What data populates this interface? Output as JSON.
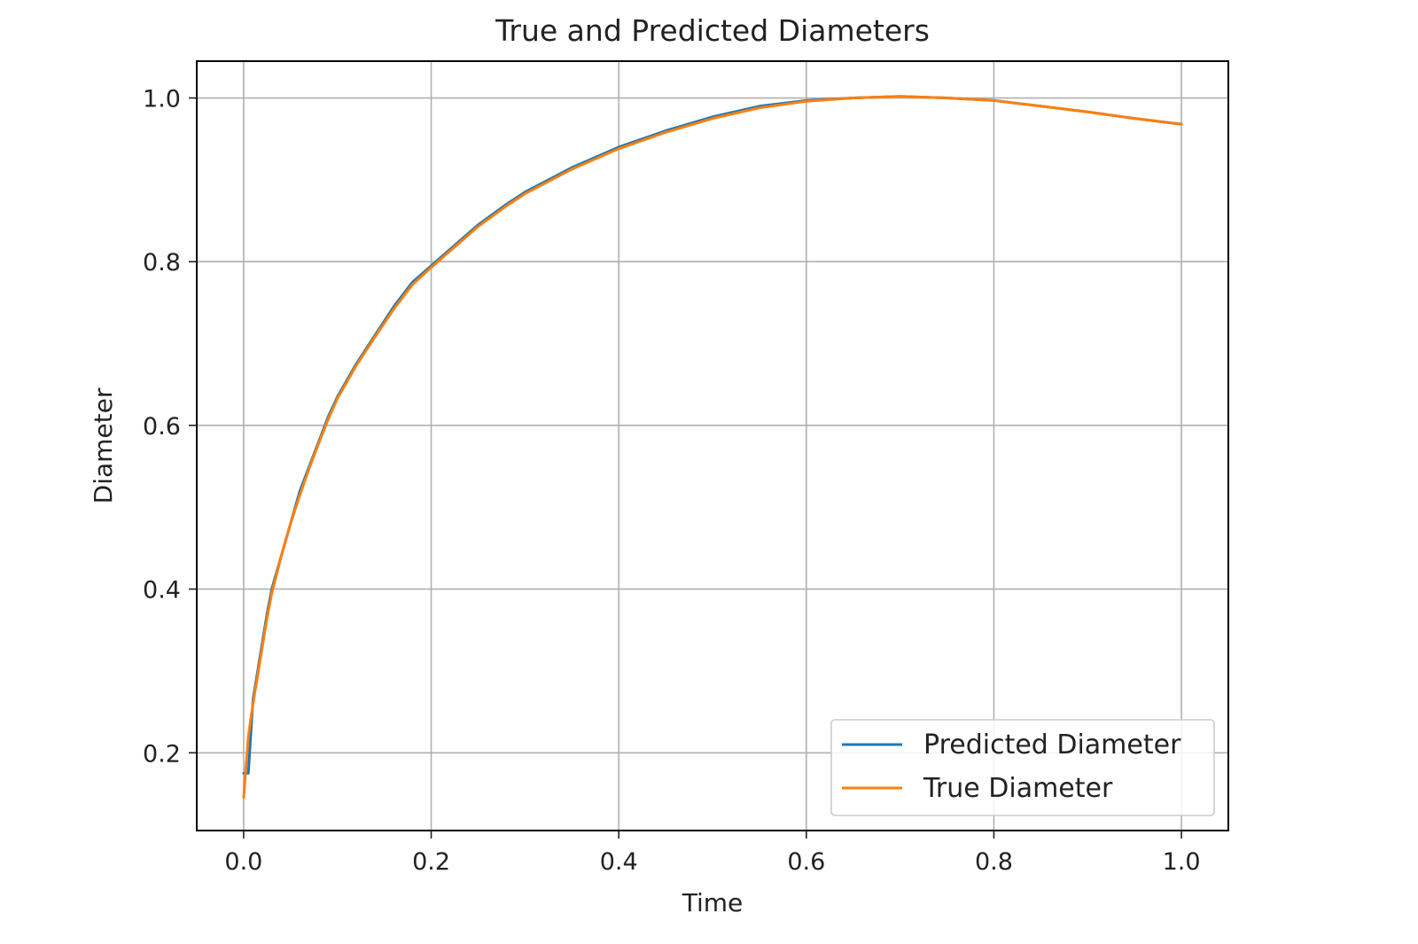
{
  "chart_data": {
    "type": "line",
    "title": "True and Predicted Diameters",
    "xlabel": "Time",
    "ylabel": "Diameter",
    "xlim": [
      -0.05,
      1.05
    ],
    "ylim": [
      0.105,
      1.045
    ],
    "xticks": [
      {
        "value": 0.0,
        "label": "0.0"
      },
      {
        "value": 0.2,
        "label": "0.2"
      },
      {
        "value": 0.4,
        "label": "0.4"
      },
      {
        "value": 0.6,
        "label": "0.6"
      },
      {
        "value": 0.8,
        "label": "0.8"
      },
      {
        "value": 1.0,
        "label": "1.0"
      }
    ],
    "yticks": [
      {
        "value": 0.2,
        "label": "0.2"
      },
      {
        "value": 0.4,
        "label": "0.4"
      },
      {
        "value": 0.6,
        "label": "0.6"
      },
      {
        "value": 0.8,
        "label": "0.8"
      },
      {
        "value": 1.0,
        "label": "1.0"
      }
    ],
    "grid": true,
    "legend_position": "lower-right",
    "series": [
      {
        "name": "Predicted Diameter",
        "color": "#1f77b4",
        "x": [
          0.0,
          0.005,
          0.01,
          0.015,
          0.02,
          0.025,
          0.03,
          0.04,
          0.05,
          0.06,
          0.07,
          0.08,
          0.09,
          0.1,
          0.12,
          0.14,
          0.16,
          0.18,
          0.2,
          0.22,
          0.25,
          0.28,
          0.3,
          0.35,
          0.4,
          0.45,
          0.5,
          0.55,
          0.6,
          0.65,
          0.7,
          0.75,
          0.8,
          0.85,
          0.9,
          0.95,
          1.0
        ],
        "y": [
          0.175,
          0.175,
          0.265,
          0.3,
          0.335,
          0.37,
          0.4,
          0.44,
          0.48,
          0.52,
          0.55,
          0.58,
          0.61,
          0.635,
          0.675,
          0.71,
          0.745,
          0.775,
          0.795,
          0.815,
          0.845,
          0.87,
          0.885,
          0.915,
          0.94,
          0.96,
          0.977,
          0.99,
          0.997,
          1.0,
          1.002,
          1.0,
          0.997,
          0.99,
          0.983,
          0.975,
          0.968
        ]
      },
      {
        "name": "True Diameter",
        "color": "#ff7f0e",
        "x": [
          0.0,
          0.005,
          0.01,
          0.015,
          0.02,
          0.025,
          0.03,
          0.04,
          0.05,
          0.06,
          0.07,
          0.08,
          0.09,
          0.1,
          0.12,
          0.14,
          0.16,
          0.18,
          0.2,
          0.22,
          0.25,
          0.28,
          0.3,
          0.35,
          0.4,
          0.45,
          0.5,
          0.55,
          0.6,
          0.65,
          0.7,
          0.75,
          0.8,
          0.85,
          0.9,
          0.95,
          1.0
        ],
        "y": [
          0.145,
          0.22,
          0.26,
          0.295,
          0.33,
          0.365,
          0.395,
          0.44,
          0.48,
          0.515,
          0.548,
          0.578,
          0.607,
          0.633,
          0.673,
          0.708,
          0.742,
          0.772,
          0.793,
          0.813,
          0.843,
          0.868,
          0.883,
          0.913,
          0.938,
          0.958,
          0.975,
          0.988,
          0.996,
          1.0,
          1.002,
          1.0,
          0.997,
          0.99,
          0.983,
          0.975,
          0.968
        ]
      }
    ]
  }
}
